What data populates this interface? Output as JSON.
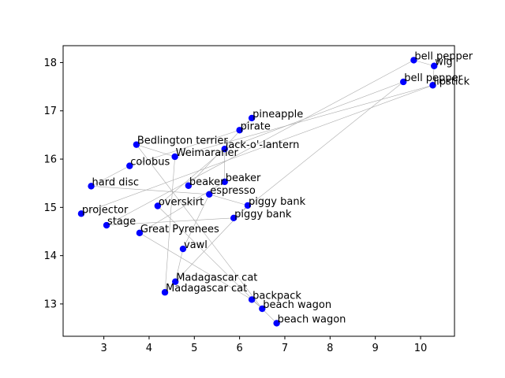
{
  "chart_data": {
    "type": "scatter",
    "title": "",
    "xlabel": "",
    "ylabel": "",
    "xlim": [
      2.1,
      10.75
    ],
    "ylim": [
      12.33,
      18.35
    ],
    "xticks": [
      3,
      4,
      5,
      6,
      7,
      8,
      9,
      10
    ],
    "yticks": [
      13,
      14,
      15,
      16,
      17,
      18
    ],
    "grid": false,
    "point_color": "#0000ff",
    "edge_color": "#aaaaaa",
    "points": [
      {
        "label": "bell pepper",
        "x": 9.85,
        "y": 18.05
      },
      {
        "label": "wig",
        "x": 10.3,
        "y": 17.93
      },
      {
        "label": "bell pepper",
        "x": 9.62,
        "y": 17.6
      },
      {
        "label": "lipstick",
        "x": 10.27,
        "y": 17.53
      },
      {
        "label": "pineapple",
        "x": 6.27,
        "y": 16.85
      },
      {
        "label": "pirate",
        "x": 6.0,
        "y": 16.6
      },
      {
        "label": "Bedlington terrier",
        "x": 3.72,
        "y": 16.3
      },
      {
        "label": "jack-o'-lantern",
        "x": 5.67,
        "y": 16.21
      },
      {
        "label": "Weimaraner",
        "x": 4.57,
        "y": 16.05
      },
      {
        "label": "colobus",
        "x": 3.57,
        "y": 15.86
      },
      {
        "label": "beaker",
        "x": 5.67,
        "y": 15.53
      },
      {
        "label": "hard disc",
        "x": 2.72,
        "y": 15.44
      },
      {
        "label": "beaker",
        "x": 4.87,
        "y": 15.45
      },
      {
        "label": "espresso",
        "x": 5.33,
        "y": 15.27
      },
      {
        "label": "piggy bank",
        "x": 6.18,
        "y": 15.04
      },
      {
        "label": "overskirt",
        "x": 4.19,
        "y": 15.03
      },
      {
        "label": "projector",
        "x": 2.5,
        "y": 14.87
      },
      {
        "label": "piggy bank",
        "x": 5.87,
        "y": 14.78
      },
      {
        "label": "stage",
        "x": 3.06,
        "y": 14.63
      },
      {
        "label": "Great Pyrenees",
        "x": 3.79,
        "y": 14.47
      },
      {
        "label": "vawl",
        "x": 4.75,
        "y": 14.14
      },
      {
        "label": "Madagascar cat",
        "x": 4.58,
        "y": 13.46
      },
      {
        "label": "Madagascar cat",
        "x": 4.35,
        "y": 13.24
      },
      {
        "label": "backpack",
        "x": 6.27,
        "y": 13.09
      },
      {
        "label": "beach wagon",
        "x": 6.5,
        "y": 12.9
      },
      {
        "label": "beach wagon",
        "x": 6.82,
        "y": 12.6
      }
    ],
    "edges": [
      [
        0,
        1
      ],
      [
        0,
        18
      ],
      [
        1,
        3
      ],
      [
        2,
        7
      ],
      [
        2,
        17
      ],
      [
        3,
        8
      ],
      [
        3,
        16
      ],
      [
        4,
        5
      ],
      [
        4,
        12
      ],
      [
        5,
        9
      ],
      [
        6,
        8
      ],
      [
        6,
        24
      ],
      [
        7,
        15
      ],
      [
        7,
        10
      ],
      [
        8,
        22
      ],
      [
        9,
        11
      ],
      [
        10,
        19
      ],
      [
        11,
        13
      ],
      [
        13,
        14
      ],
      [
        13,
        20
      ],
      [
        15,
        25
      ],
      [
        17,
        18
      ],
      [
        19,
        23
      ],
      [
        21,
        14
      ],
      [
        20,
        21
      ],
      [
        23,
        24
      ]
    ]
  }
}
